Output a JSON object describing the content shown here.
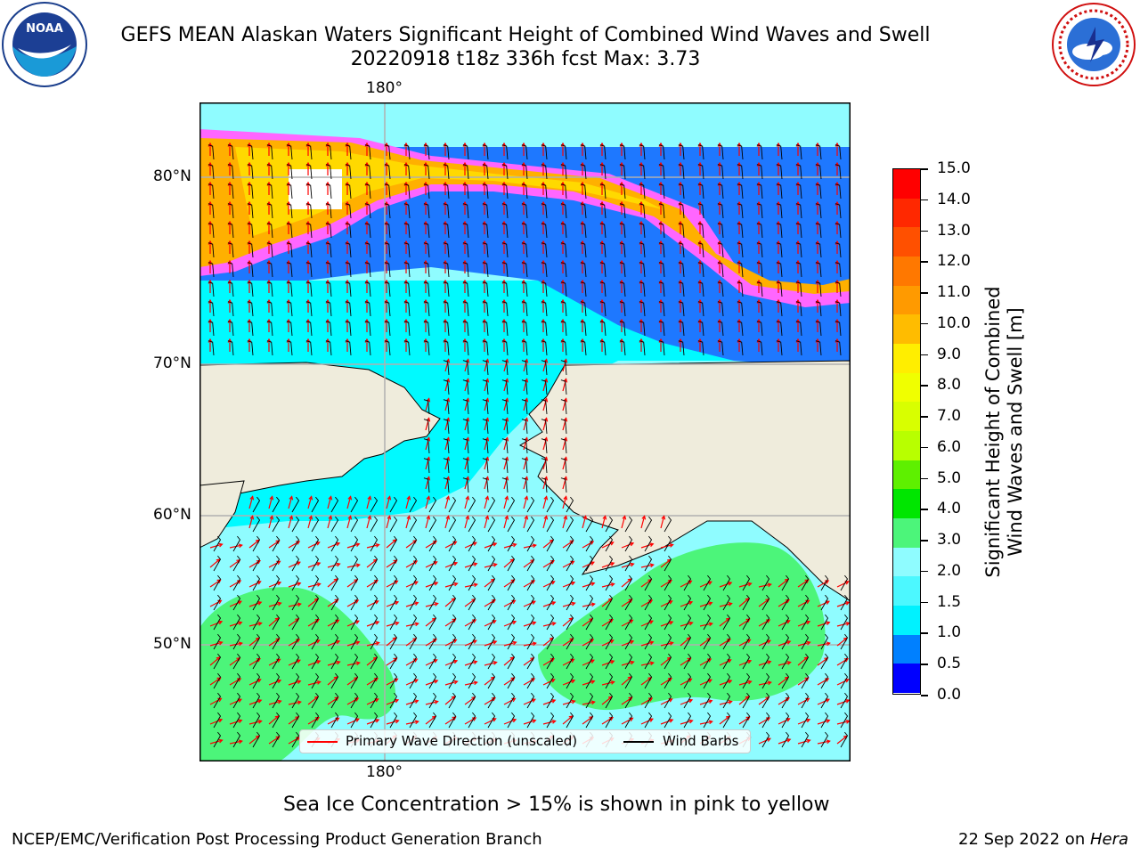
{
  "title": {
    "line1": "GEFS MEAN Alaskan Waters Significant Height of Combined Wind Waves and Swell",
    "line2": "20220918 t18z 336h fcst   Max: 3.73"
  },
  "logos": {
    "left": "noaa-logo",
    "left_text": "NOAA",
    "right": "nws-logo"
  },
  "map": {
    "lon_labels": [
      "180°",
      "180°"
    ],
    "lat_labels": [
      "80°N",
      "70°N",
      "60°N",
      "50°N"
    ],
    "colors": {
      "land": "#efecdc",
      "ocean_low": "#8ffcff",
      "ocean_mid": "#00faff",
      "ocean_blue": "#1e78ff",
      "green": "#4cf57a",
      "ice_pink": "#ff66ff",
      "ice_orange": "#ffb000",
      "ice_yellow": "#ffd900",
      "arrow": "#ff0000",
      "barb": "#000000",
      "grid": "#b0b0b0"
    }
  },
  "legend": {
    "wave_label": "Primary Wave Direction (unscaled)",
    "wind_label": "Wind Barbs"
  },
  "colorbar": {
    "title_line1": "Significant Height of Combined",
    "title_line2": "Wind Waves and Swell [m]",
    "ticks": [
      "15.0",
      "14.0",
      "13.0",
      "12.0",
      "11.0",
      "10.0",
      "9.0",
      "8.0",
      "7.0",
      "6.0",
      "5.0",
      "4.0",
      "3.0",
      "2.0",
      "1.5",
      "1.0",
      "0.5",
      "0.0"
    ],
    "colors": [
      "#ff0000",
      "#ff2800",
      "#ff5000",
      "#ff7800",
      "#ff9a00",
      "#ffbc00",
      "#ffee00",
      "#f0ff00",
      "#d8ff00",
      "#b8ff00",
      "#5ef000",
      "#00e600",
      "#4cf57a",
      "#8ffcff",
      "#4cf8ff",
      "#00f2ff",
      "#0080ff",
      "#0000ff"
    ]
  },
  "ice_note": "Sea Ice Concentration > 15% is shown in pink to yellow",
  "footer": {
    "left": "NCEP/EMC/Verification Post Processing Product Generation Branch",
    "right_prefix": "22 Sep 2022 on ",
    "right_host": "Hera"
  }
}
